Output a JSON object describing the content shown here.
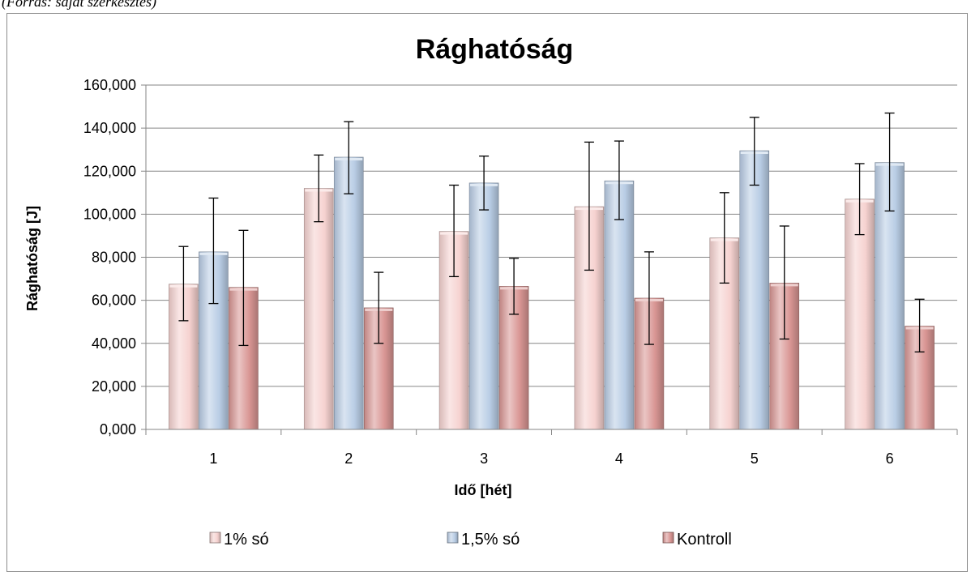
{
  "caption_fragment": "(Forrás: saját szerkesztés)",
  "chart_data": {
    "type": "bar",
    "title": "Rághatóság",
    "xlabel": "Idő [hét]",
    "ylabel": "Rághatóság [J]",
    "categories": [
      "1",
      "2",
      "3",
      "4",
      "5",
      "6"
    ],
    "ylim": [
      0,
      160000
    ],
    "yticks": [
      "0,000",
      "20,000",
      "40,000",
      "60,000",
      "80,000",
      "100,000",
      "120,000",
      "140,000",
      "160,000"
    ],
    "grid": true,
    "legend_position": "bottom",
    "series": [
      {
        "name": "1% só",
        "color": "#f6d2d0",
        "values": [
          67500,
          112000,
          92000,
          103500,
          89000,
          107000
        ],
        "error_low": [
          50500,
          96500,
          71000,
          74000,
          68000,
          90500
        ],
        "error_high": [
          85000,
          127500,
          113500,
          133500,
          110000,
          123500
        ]
      },
      {
        "name": "1,5% só",
        "color": "#b9cde5",
        "values": [
          82500,
          126500,
          114500,
          115500,
          129500,
          124000
        ],
        "error_low": [
          58500,
          109500,
          102000,
          97500,
          113500,
          101500
        ],
        "error_high": [
          107500,
          143000,
          127000,
          134000,
          145000,
          147000
        ]
      },
      {
        "name": "Kontroll",
        "color": "#d99694",
        "values": [
          66000,
          56500,
          66500,
          61000,
          68000,
          48000
        ],
        "error_low": [
          39000,
          40000,
          53500,
          39500,
          42000,
          36000
        ],
        "error_high": [
          92500,
          73000,
          79500,
          82500,
          94500,
          60500
        ]
      }
    ]
  }
}
